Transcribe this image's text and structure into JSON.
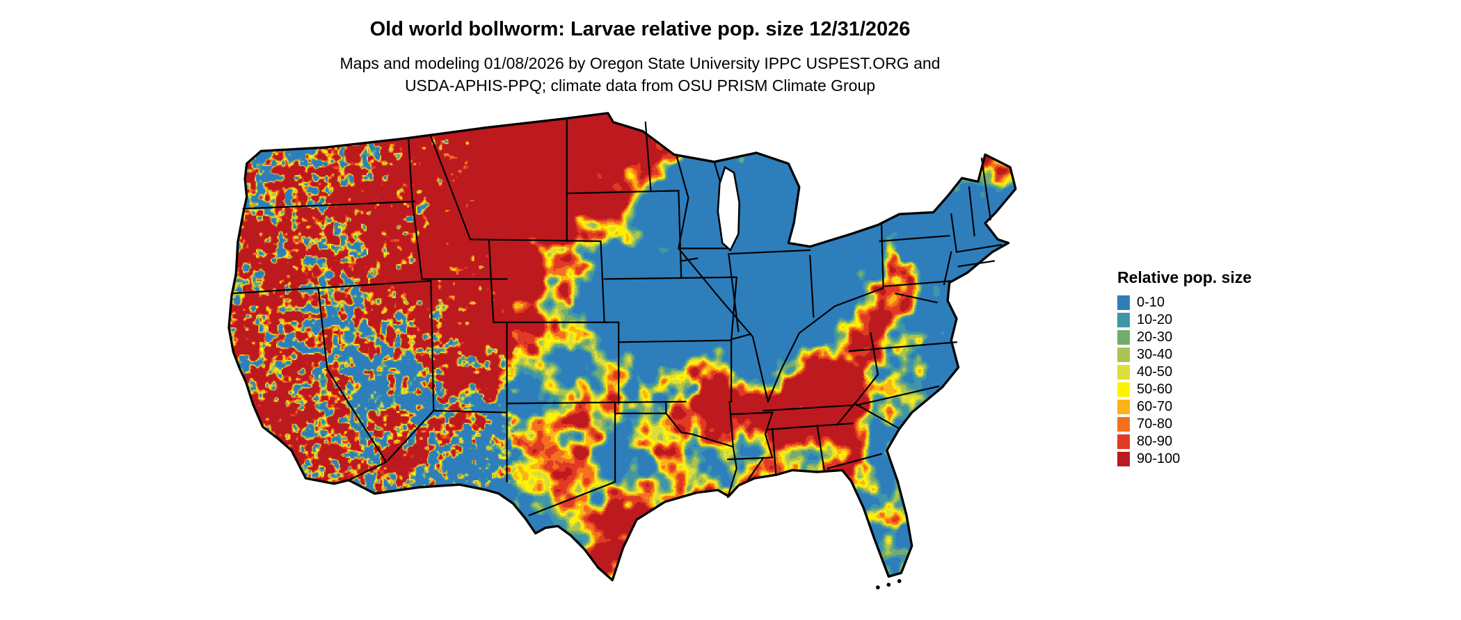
{
  "header": {
    "title": "Old world bollworm: Larvae relative pop. size 12/31/2026",
    "subtitle_line1": "Maps and modeling 01/08/2026 by Oregon State University IPPC USPEST.ORG and",
    "subtitle_line2": "USDA-APHIS-PPQ; climate data from OSU PRISM Climate Group"
  },
  "legend": {
    "title": "Relative pop. size",
    "items": [
      {
        "label": "0-10",
        "color": "#2E7EBC"
      },
      {
        "label": "10-20",
        "color": "#3F96A8"
      },
      {
        "label": "20-30",
        "color": "#74AC6E"
      },
      {
        "label": "30-40",
        "color": "#ABC450"
      },
      {
        "label": "40-50",
        "color": "#DEDE3A"
      },
      {
        "label": "50-60",
        "color": "#FFF200"
      },
      {
        "label": "60-70",
        "color": "#FCB316"
      },
      {
        "label": "70-80",
        "color": "#F3701E"
      },
      {
        "label": "80-90",
        "color": "#E13A24"
      },
      {
        "label": "90-100",
        "color": "#BC1A1F"
      }
    ]
  },
  "map": {
    "region": "Contiguous United States",
    "type": "raster heatmap",
    "border_color": "#000000",
    "water_color": "#FFFFFF"
  }
}
